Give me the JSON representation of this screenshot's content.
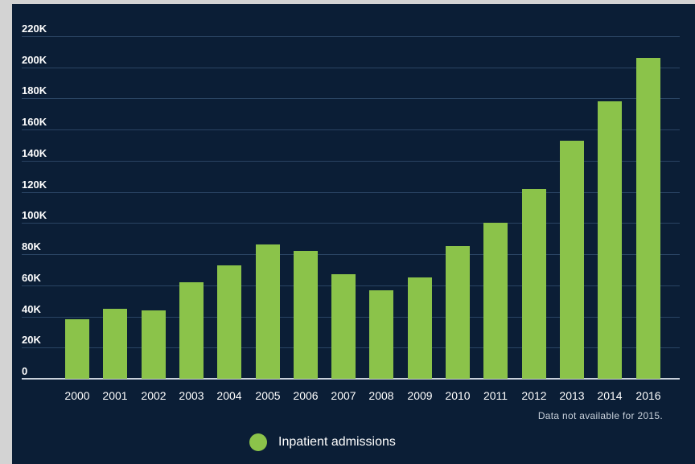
{
  "chart_data": {
    "type": "bar",
    "categories": [
      "2000",
      "2001",
      "2002",
      "2003",
      "2004",
      "2005",
      "2006",
      "2007",
      "2008",
      "2009",
      "2010",
      "2011",
      "2012",
      "2013",
      "2014",
      "2016"
    ],
    "series": [
      {
        "name": "Inpatient admissions",
        "values": [
          38000,
          45000,
          44000,
          62000,
          73000,
          86000,
          82000,
          67000,
          57000,
          65000,
          85000,
          100000,
          122000,
          153000,
          178000,
          206000
        ]
      }
    ],
    "y_ticks": [
      "0",
      "20K",
      "40K",
      "60K",
      "80K",
      "100K",
      "120K",
      "140K",
      "160K",
      "180K",
      "200K",
      "220K"
    ],
    "ylim": [
      0,
      220000
    ],
    "grid": true,
    "legend_position": "bottom",
    "annotation": "Data not available for 2015.",
    "colors": {
      "bar": "#8bc34a",
      "background": "#0b1e36",
      "gridline": "#2a4463"
    }
  }
}
